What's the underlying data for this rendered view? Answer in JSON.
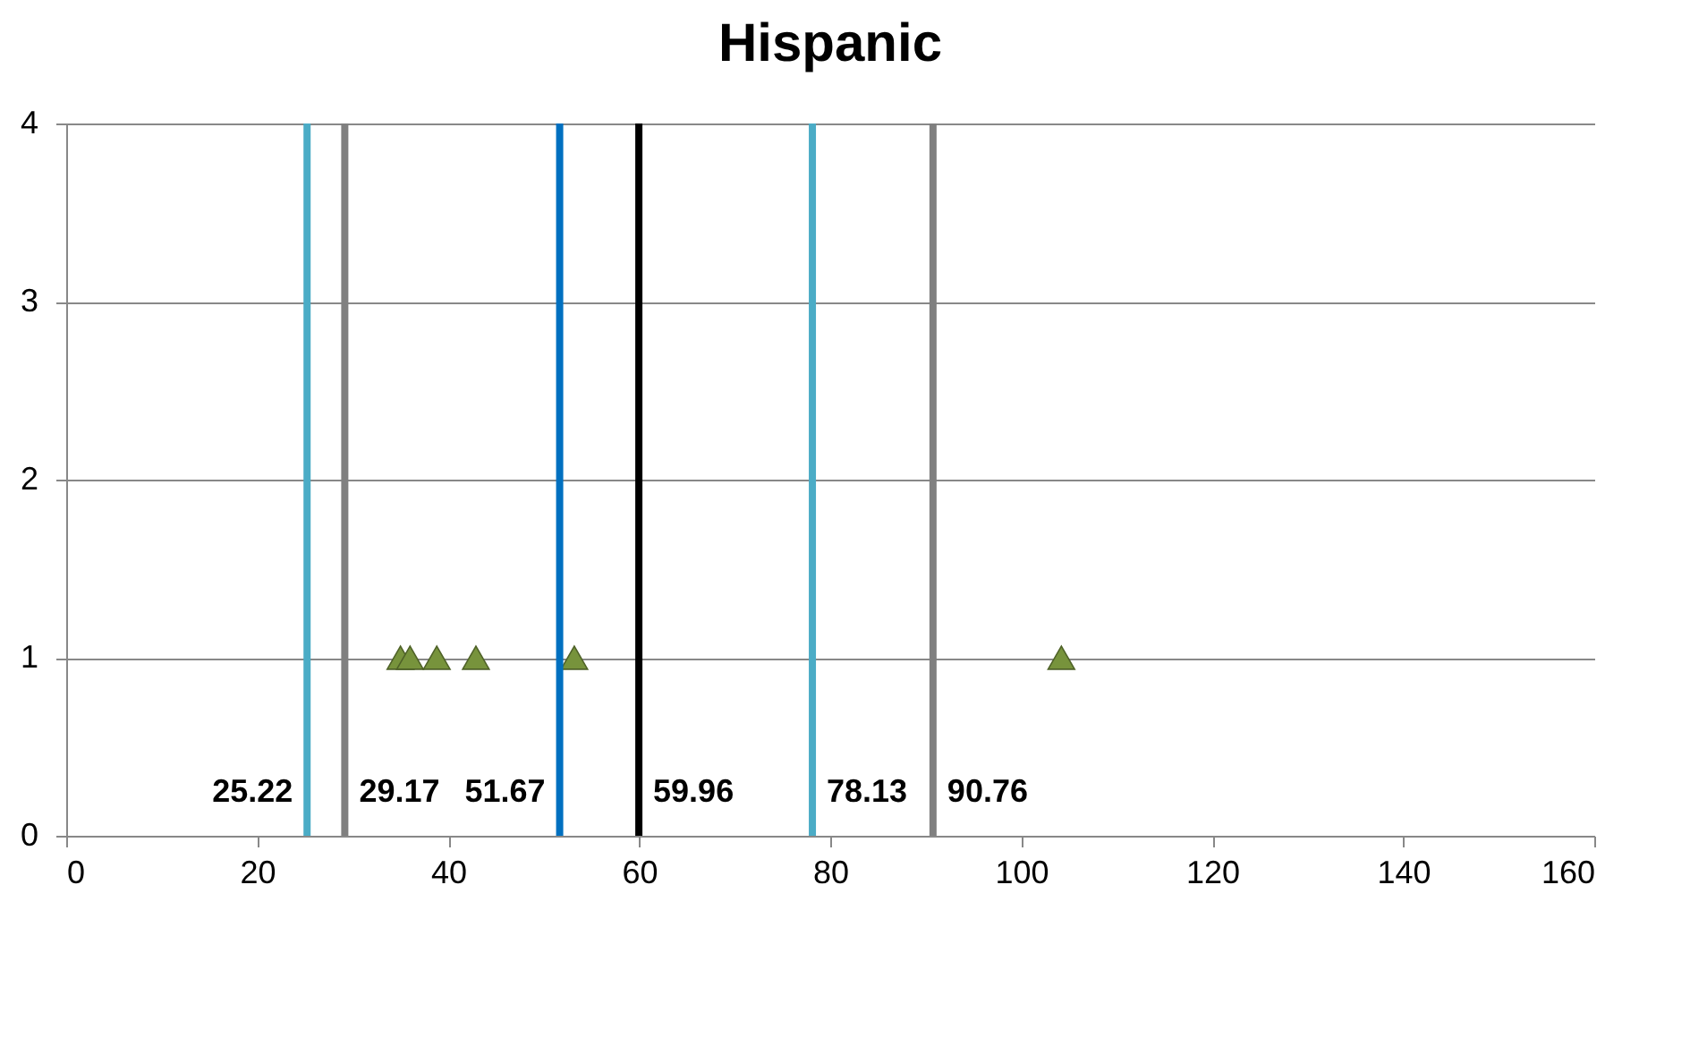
{
  "chart_data": {
    "type": "scatter",
    "title": "Hispanic",
    "x": [
      35,
      36,
      38.8,
      42.9,
      53.2,
      104.2
    ],
    "series": [
      {
        "color": "#77933c",
        "values": [
          1,
          1,
          1,
          1,
          1,
          1
        ]
      }
    ],
    "marker": "triangle",
    "xlim": [
      0,
      160
    ],
    "xticks": [
      0,
      20,
      40,
      60,
      80,
      100,
      120,
      140,
      160
    ],
    "ylim": [
      0,
      4
    ],
    "yticks": [
      0,
      1,
      2,
      3,
      4
    ],
    "grid": "y",
    "legend": false,
    "ref_lines": [
      {
        "axis": "x",
        "value": 25.22,
        "label": "25.22",
        "color": "#4bacc6"
      },
      {
        "axis": "x",
        "value": 29.17,
        "label": "29.17",
        "color": "#808080"
      },
      {
        "axis": "x",
        "value": 51.67,
        "label": "51.67",
        "color": "#0070c0"
      },
      {
        "axis": "x",
        "value": 59.96,
        "label": "59.96",
        "color": "#000000"
      },
      {
        "axis": "x",
        "value": 78.13,
        "label": "78.13",
        "color": "#4bacc6"
      },
      {
        "axis": "x",
        "value": 90.76,
        "label": "90.76",
        "color": "#808080"
      }
    ]
  }
}
